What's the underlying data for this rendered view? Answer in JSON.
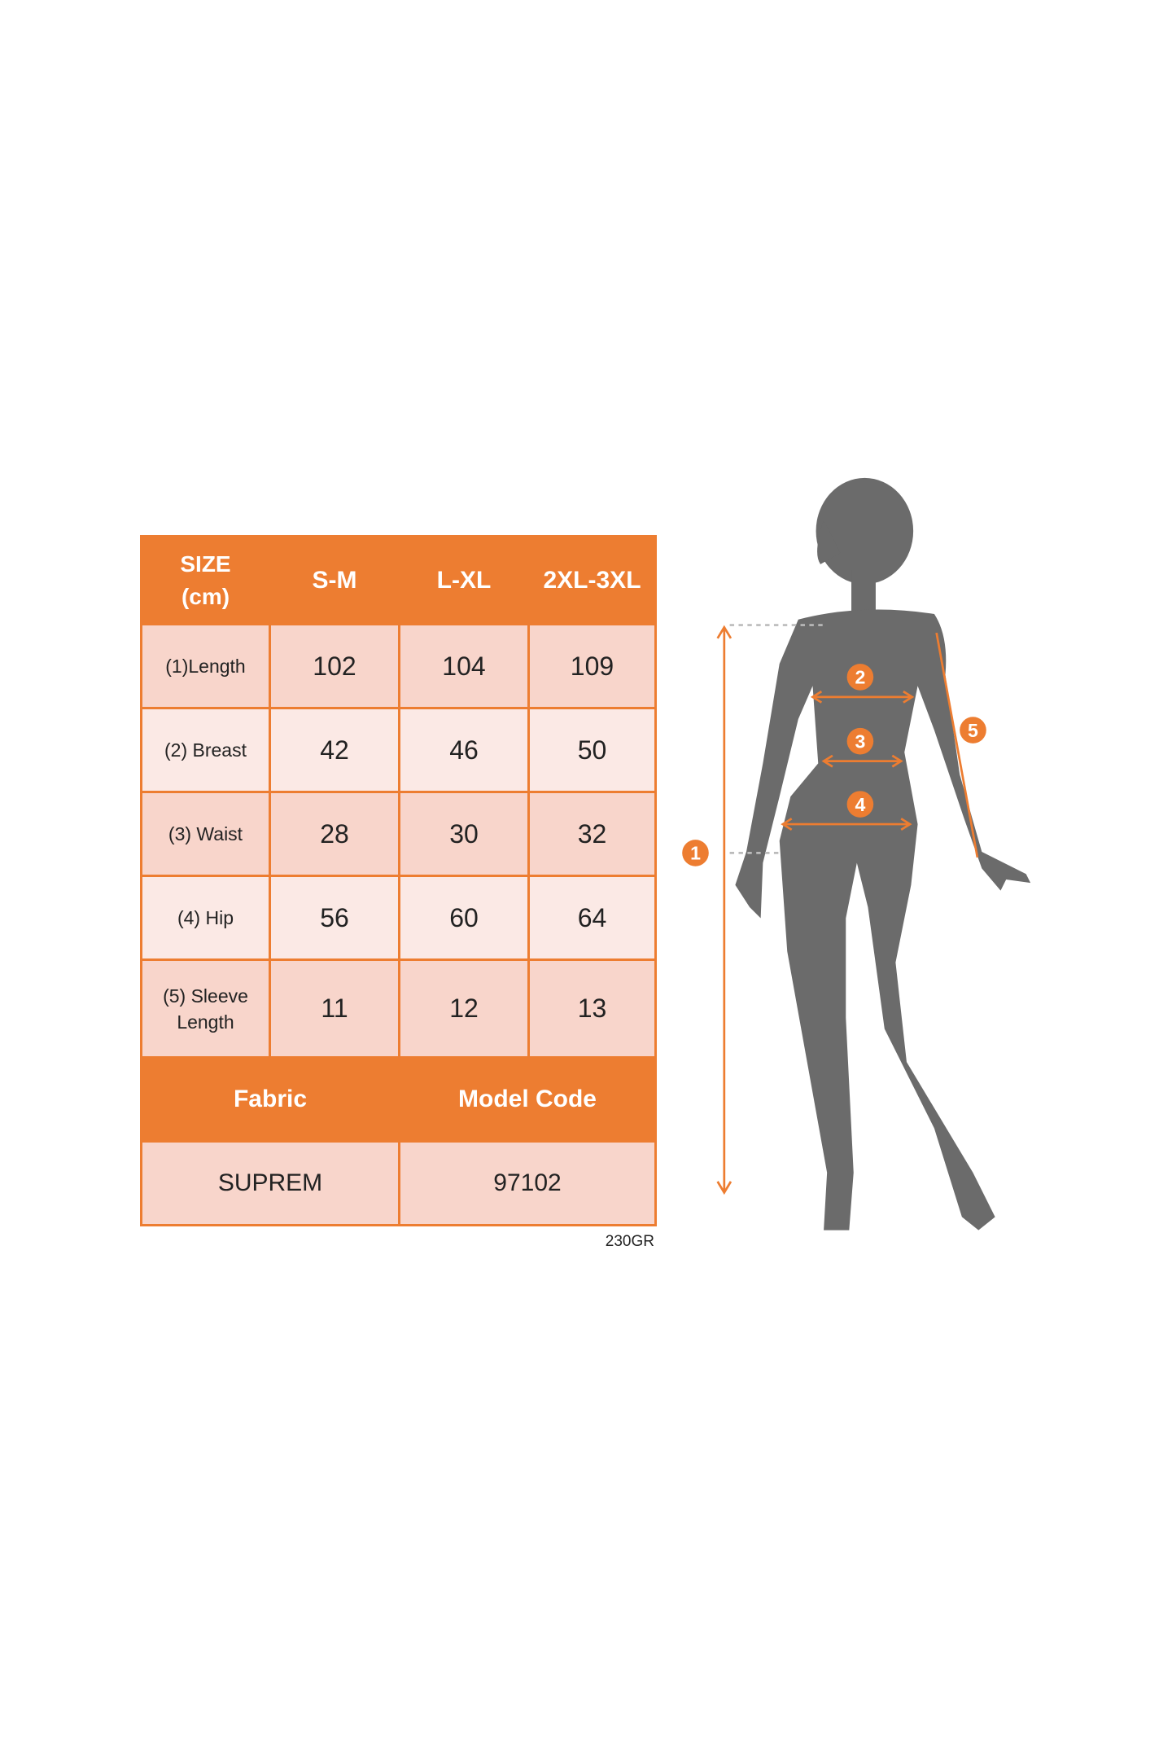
{
  "colors": {
    "accent": "#ED7D31",
    "row_dark": "#F8D5CB",
    "row_light": "#FBE9E5",
    "silhouette": "#6B6B6B"
  },
  "table": {
    "header": [
      "SIZE (cm)",
      "S-M",
      "L-XL",
      "2XL-3XL"
    ],
    "rows": [
      {
        "label": "(1)Length",
        "values": [
          "102",
          "104",
          "109"
        ]
      },
      {
        "label": "(2) Breast",
        "values": [
          "42",
          "46",
          "50"
        ]
      },
      {
        "label": "(3) Waist",
        "values": [
          "28",
          "30",
          "32"
        ]
      },
      {
        "label": "(4) Hip",
        "values": [
          "56",
          "60",
          "64"
        ]
      },
      {
        "label": "(5) Sleeve Length",
        "values": [
          "11",
          "12",
          "13"
        ]
      }
    ],
    "footer_header": [
      "Fabric",
      "Model Code"
    ],
    "footer_values": [
      "SUPREM",
      "97102"
    ],
    "weight_note": "230GR"
  },
  "figure": {
    "markers": [
      "1",
      "2",
      "3",
      "4",
      "5"
    ]
  }
}
